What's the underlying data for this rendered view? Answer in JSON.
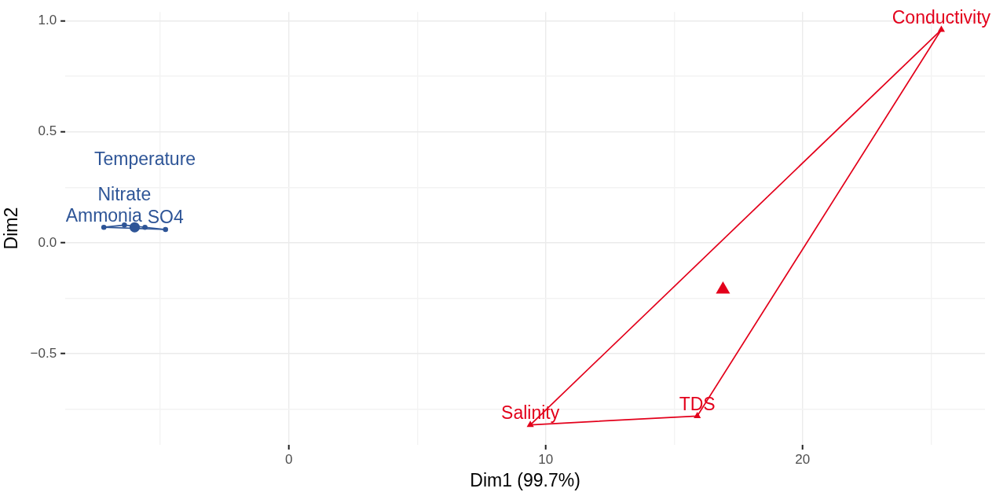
{
  "chart_data": {
    "type": "scatter",
    "xlabel": "Dim1 (99.7%)",
    "ylabel": "Dim2",
    "xlim": [
      -8.7,
      27.1
    ],
    "ylim": [
      -0.91,
      1.04
    ],
    "xticks": [
      {
        "value": -5,
        "label": null
      },
      0,
      {
        "value": 5,
        "label": null
      },
      10,
      {
        "value": 15,
        "label": null
      },
      20,
      {
        "value": 25,
        "label": null
      }
    ],
    "yticks": [
      {
        "value": -0.75,
        "label": null
      },
      {
        "value": -0.5,
        "label": "−0.5"
      },
      {
        "value": -0.25,
        "label": null
      },
      {
        "value": 0,
        "label": "0.0"
      },
      {
        "value": 0.25,
        "label": null
      },
      0.5,
      {
        "value": 0.75,
        "label": null
      },
      {
        "value": 1,
        "label": "1.0"
      }
    ],
    "grid": true,
    "series": [
      {
        "type": "line",
        "color": "#2e5597",
        "marker": "none",
        "x": [
          -7.2,
          -6.4,
          -4.8
        ],
        "values": [
          0.07,
          0.08,
          0.06
        ]
      },
      {
        "type": "line",
        "color": "#2e5597",
        "marker": "none",
        "x": [
          -7.2,
          -4.8
        ],
        "values": [
          0.07,
          0.06
        ]
      },
      {
        "type": "line",
        "color": "#e3001b",
        "marker": "none",
        "x": [
          9.4,
          25.4
        ],
        "values": [
          -0.82,
          0.96
        ]
      },
      {
        "type": "line",
        "color": "#e3001b",
        "marker": "none",
        "x": [
          9.4,
          15.9,
          25.4
        ],
        "values": [
          -0.82,
          -0.78,
          0.96
        ]
      },
      {
        "color": "#2e5597",
        "marker": "circle",
        "x": [
          -7.2,
          -6.4,
          -5.6,
          -4.8
        ],
        "values": [
          0.07,
          0.08,
          0.07,
          0.06
        ],
        "value_labels": [
          "Ammonia",
          "Nitrate",
          "Temperature",
          "SO4"
        ]
      },
      {
        "color": "#e3001b",
        "marker": "triangle",
        "x": [
          25.4,
          15.9,
          9.4
        ],
        "values": [
          0.96,
          -0.78,
          -0.82
        ],
        "value_labels": [
          "Conductivity",
          "TDS",
          "Salinity"
        ]
      },
      {
        "color": "#2e5597",
        "marker": "circle",
        "x": [
          -6.0
        ],
        "values": [
          0.07
        ]
      },
      {
        "color": "#e3001b",
        "marker": "triangle",
        "x": [
          16.9
        ],
        "values": [
          -0.21
        ]
      }
    ]
  }
}
